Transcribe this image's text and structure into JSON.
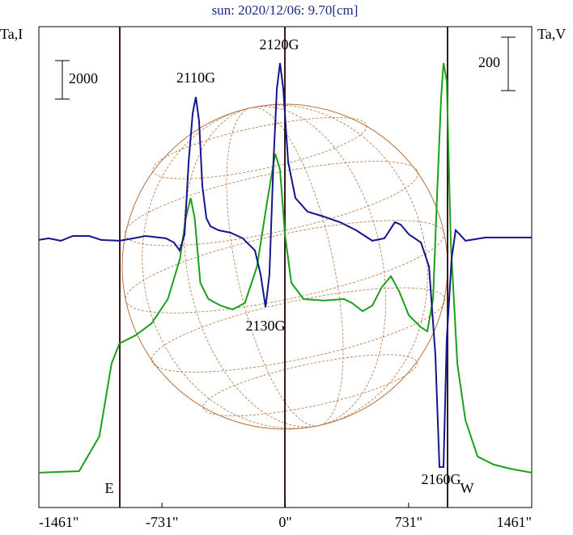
{
  "chart_data": {
    "type": "line",
    "title": "sun: 2020/12/06: 9.70[cm]",
    "y_label": "Ta,I",
    "y2_label": "Ta,V",
    "xlim": [
      -1461,
      1461
    ],
    "xticks": [
      {
        "value": -1461,
        "label": "-1461\""
      },
      {
        "value": -731,
        "label": "-731\""
      },
      {
        "value": 0,
        "label": "0\""
      },
      {
        "value": 731,
        "label": "731\""
      },
      {
        "value": 1461,
        "label": "1461\""
      }
    ],
    "ylim": [
      -1000,
      24000
    ],
    "y2lim": [
      -1000,
      800
    ],
    "scale_bars": [
      {
        "value": 2000
      },
      {
        "value": 200,
        "axis": "y2"
      }
    ],
    "annotations": [
      "2110G",
      "2120G",
      "2130G",
      "2160G",
      "E",
      "W"
    ],
    "series": [
      {
        "color": "#1aa01a",
        "x": [
          -1461,
          -1222,
          -1102,
          -1030,
          -983,
          -888,
          -792,
          -696,
          -624,
          -590,
          -561,
          -537,
          -504,
          -456,
          -384,
          -312,
          -240,
          -168,
          -108,
          -60,
          -31,
          -2,
          36,
          108,
          228,
          348,
          396,
          458,
          516,
          573,
          626,
          674,
          732,
          804,
          842,
          876,
          900,
          924,
          938,
          957,
          981,
          1020,
          1068,
          1140,
          1236,
          1331,
          1461
        ],
        "values": [
          810,
          890,
          2700,
          6480,
          7530,
          7950,
          8580,
          9840,
          11940,
          14040,
          15090,
          14040,
          10680,
          9840,
          9500,
          9300,
          9630,
          11520,
          14880,
          17400,
          16560,
          13200,
          10680,
          9840,
          9760,
          9840,
          9630,
          9210,
          9500,
          10470,
          11020,
          10260,
          9000,
          8370,
          8160,
          9840,
          15300,
          20350,
          22110,
          21190,
          12780,
          6480,
          3540,
          1650,
          1230,
          1020,
          810
        ]
      },
      {
        "color": "#14148c",
        "axis": "y2",
        "x": [
          -1461,
          -1403,
          -1331,
          -1259,
          -1163,
          -1091,
          -981,
          -900,
          -828,
          -708,
          -660,
          -626,
          -597,
          -573,
          -549,
          -530,
          -511,
          -492,
          -468,
          -444,
          -396,
          -324,
          -252,
          -180,
          -146,
          -117,
          -94,
          -70,
          -50,
          -31,
          -12,
          17,
          60,
          132,
          228,
          324,
          420,
          516,
          588,
          650,
          684,
          732,
          804,
          852,
          890,
          914,
          938,
          957,
          986,
          1010,
          1034,
          1068,
          1188,
          1331,
          1461
        ],
        "values": [
          1.5,
          7.6,
          -1.5,
          16.6,
          16.6,
          1.5,
          -1.5,
          7.6,
          16.6,
          7.6,
          -7.6,
          -37.8,
          22.7,
          294.9,
          476.4,
          536.9,
          446.2,
          204.2,
          83.2,
          52.9,
          37.8,
          28.7,
          7.6,
          -37.8,
          -128.6,
          -249.6,
          -128.6,
          294.9,
          567.2,
          664,
          567.2,
          294.9,
          158.8,
          107.4,
          89.2,
          68.1,
          37.8,
          -1.5,
          7.6,
          68.1,
          59,
          22.7,
          -7.6,
          -98.3,
          -431.1,
          -848.5,
          -848.5,
          -370.6,
          -68.1,
          37.8,
          22.7,
          -1.5,
          10.6,
          10.6,
          10.6
        ]
      }
    ]
  }
}
